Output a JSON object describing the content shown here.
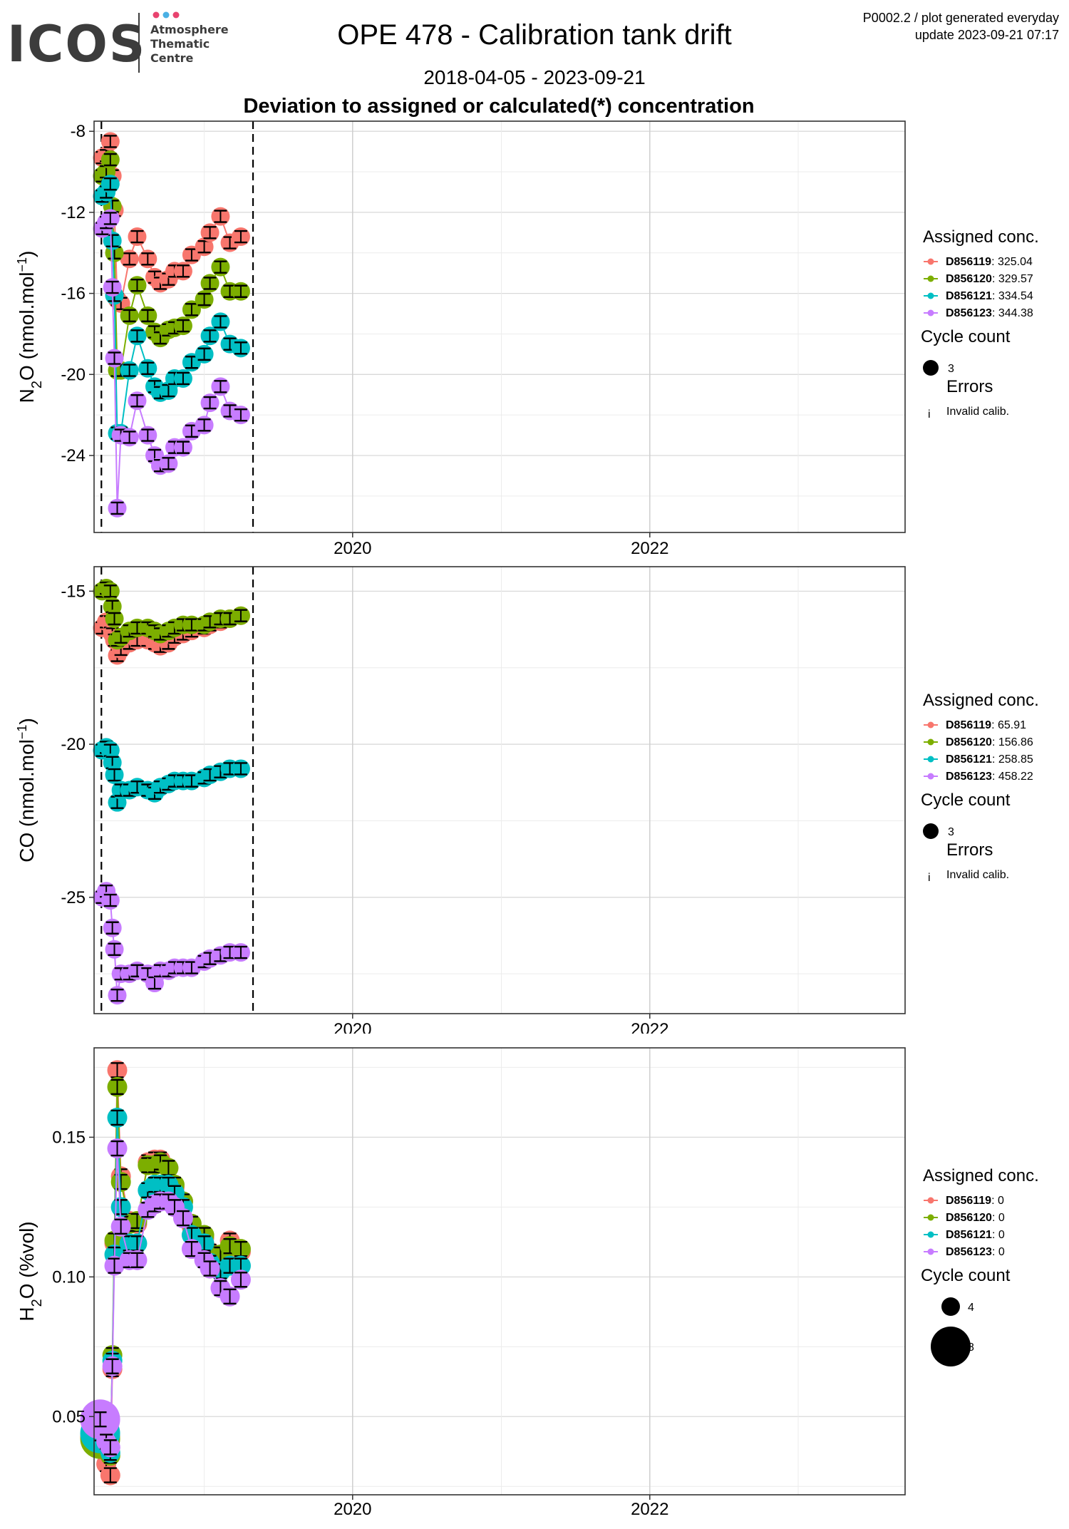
{
  "header": {
    "logo_main": "ICOS",
    "logo_sub_lines": [
      "Atmosphere",
      "Thematic",
      "Centre"
    ],
    "logo_dot_colors": [
      "#e8436f",
      "#4ab0e4",
      "#e8436f"
    ],
    "title": "OPE 478 - Calibration tank drift",
    "subtitle": "2018-04-05 - 2023-09-21",
    "headline": "Deviation to assigned or calculated(*) concentration",
    "info_line1": "P0002.2 / plot generated everyday",
    "info_line2": "update  2023-09-21 07:17"
  },
  "legend_labels": {
    "assigned": "Assigned conc.",
    "cycle": "Cycle count",
    "errors": "Errors",
    "invalid": "Invalid calib.",
    "error_glyph": "i"
  },
  "series_colors": {
    "D856119": "#f8766d",
    "D856120": "#7cae00",
    "D856121": "#00bfc4",
    "D856123": "#c77cff"
  },
  "chart_data": [
    {
      "type": "scatter",
      "id": "n2o",
      "ylabel": "N2O (nmol.mol-1)",
      "ylim": [
        -27.8,
        -7.5
      ],
      "yticks": [
        -24,
        -20,
        -16,
        -12,
        -8
      ],
      "xlim": [
        "2018-04-05",
        "2023-09-21"
      ],
      "xticks": [
        "2020",
        "2022"
      ],
      "grid": true,
      "legend_position": "right",
      "vlines_dashed": [
        "2018-04-23",
        "2019-05-01"
      ],
      "legend": {
        "assigned": [
          {
            "id": "D856119",
            "value": "325.04"
          },
          {
            "id": "D856120",
            "value": "329.57"
          },
          {
            "id": "D856121",
            "value": "334.54"
          },
          {
            "id": "D856123",
            "value": "344.38"
          }
        ],
        "cycle_sizes": [
          3
        ],
        "errors": true
      },
      "series": [
        {
          "name": "D856119",
          "x": [
            "2018-04-25",
            "2018-05-05",
            "2018-05-15",
            "2018-05-20",
            "2018-05-25",
            "2018-06-01",
            "2018-06-10",
            "2018-07-01",
            "2018-07-20",
            "2018-08-15",
            "2018-09-01",
            "2018-09-15",
            "2018-10-05",
            "2018-10-20",
            "2018-11-10",
            "2018-12-01",
            "2019-01-01",
            "2019-01-15",
            "2019-02-10",
            "2019-03-05",
            "2019-04-01"
          ],
          "y": [
            -9.3,
            -9.2,
            -8.5,
            -10.2,
            -11.9,
            -16.3,
            -16.5,
            -14.3,
            -13.2,
            -14.3,
            -15.2,
            -15.5,
            -15.3,
            -14.9,
            -14.9,
            -14.1,
            -13.7,
            -13.0,
            -12.2,
            -13.5,
            -13.2
          ]
        },
        {
          "name": "D856120",
          "x": [
            "2018-04-25",
            "2018-05-05",
            "2018-05-15",
            "2018-05-20",
            "2018-05-25",
            "2018-06-01",
            "2018-06-10",
            "2018-07-01",
            "2018-07-20",
            "2018-08-15",
            "2018-09-01",
            "2018-09-15",
            "2018-10-05",
            "2018-10-20",
            "2018-11-10",
            "2018-12-01",
            "2019-01-01",
            "2019-01-15",
            "2019-02-10",
            "2019-03-05",
            "2019-04-01"
          ],
          "y": [
            -10.2,
            -10.0,
            -9.4,
            -11.7,
            -14.0,
            -19.8,
            -19.8,
            -17.1,
            -15.6,
            -17.1,
            -17.9,
            -18.2,
            -17.8,
            -17.7,
            -17.6,
            -16.8,
            -16.3,
            -15.5,
            -14.7,
            -15.9,
            -15.9
          ]
        },
        {
          "name": "D856121",
          "x": [
            "2018-04-25",
            "2018-05-05",
            "2018-05-15",
            "2018-05-20",
            "2018-05-25",
            "2018-06-01",
            "2018-06-10",
            "2018-07-01",
            "2018-07-20",
            "2018-08-15",
            "2018-09-01",
            "2018-09-15",
            "2018-10-05",
            "2018-10-20",
            "2018-11-10",
            "2018-12-01",
            "2019-01-01",
            "2019-01-15",
            "2019-02-10",
            "2019-03-05",
            "2019-04-01"
          ],
          "y": [
            -11.2,
            -11.0,
            -10.6,
            -13.4,
            -16.1,
            -22.9,
            -22.9,
            -19.8,
            -18.1,
            -19.7,
            -20.6,
            -20.9,
            -20.8,
            -20.2,
            -20.2,
            -19.4,
            -19.0,
            -18.1,
            -17.4,
            -18.5,
            -18.7
          ]
        },
        {
          "name": "D856123",
          "x": [
            "2018-04-25",
            "2018-05-05",
            "2018-05-15",
            "2018-05-20",
            "2018-05-25",
            "2018-06-01",
            "2018-06-10",
            "2018-07-01",
            "2018-07-20",
            "2018-08-15",
            "2018-09-01",
            "2018-09-15",
            "2018-10-05",
            "2018-10-20",
            "2018-11-10",
            "2018-12-01",
            "2019-01-01",
            "2019-01-15",
            "2019-02-10",
            "2019-03-05",
            "2019-04-01"
          ],
          "y": [
            -12.8,
            -12.5,
            -12.3,
            -15.7,
            -19.2,
            -26.6,
            -23.0,
            -23.1,
            -21.3,
            -23.0,
            -24.0,
            -24.5,
            -24.4,
            -23.6,
            -23.6,
            -22.8,
            -22.5,
            -21.4,
            -20.6,
            -21.8,
            -22.0
          ]
        }
      ]
    },
    {
      "type": "scatter",
      "id": "co",
      "ylabel": "CO (nmol.mol-1)",
      "ylim": [
        -28.8,
        -14.2
      ],
      "yticks": [
        -25,
        -20,
        -15
      ],
      "xlim": [
        "2018-04-05",
        "2023-09-21"
      ],
      "xticks": [
        "2020",
        "2022"
      ],
      "grid": true,
      "legend_position": "right",
      "vlines_dashed": [
        "2018-04-23",
        "2019-05-01"
      ],
      "legend": {
        "assigned": [
          {
            "id": "D856119",
            "value": "65.91"
          },
          {
            "id": "D856120",
            "value": "156.86"
          },
          {
            "id": "D856121",
            "value": "258.85"
          },
          {
            "id": "D856123",
            "value": "458.22"
          }
        ],
        "cycle_sizes": [
          3
        ],
        "errors": true
      },
      "series": [
        {
          "name": "D856119",
          "x": [
            "2018-04-25",
            "2018-05-05",
            "2018-05-15",
            "2018-05-20",
            "2018-05-25",
            "2018-06-01",
            "2018-06-10",
            "2018-07-01",
            "2018-07-20",
            "2018-08-15",
            "2018-09-01",
            "2018-09-15",
            "2018-10-05",
            "2018-10-20",
            "2018-11-10",
            "2018-12-01",
            "2019-01-01",
            "2019-01-15",
            "2019-02-10",
            "2019-03-05",
            "2019-04-01"
          ],
          "y": [
            -16.2,
            -16.0,
            -16.0,
            -16.4,
            -16.6,
            -17.1,
            -16.9,
            -16.7,
            -16.6,
            -16.6,
            -16.7,
            -16.8,
            -16.7,
            -16.5,
            -16.4,
            -16.3,
            -16.2,
            -16.1,
            -16.0,
            -15.9,
            -15.8
          ]
        },
        {
          "name": "D856120",
          "x": [
            "2018-04-25",
            "2018-05-05",
            "2018-05-15",
            "2018-05-20",
            "2018-05-25",
            "2018-06-01",
            "2018-06-10",
            "2018-07-01",
            "2018-07-20",
            "2018-08-15",
            "2018-09-01",
            "2018-09-15",
            "2018-10-05",
            "2018-10-20",
            "2018-11-10",
            "2018-12-01",
            "2019-01-01",
            "2019-01-15",
            "2019-02-10",
            "2019-03-05",
            "2019-04-01"
          ],
          "y": [
            -15.0,
            -14.9,
            -15.0,
            -15.5,
            -15.9,
            -16.6,
            -16.5,
            -16.3,
            -16.2,
            -16.2,
            -16.3,
            -16.4,
            -16.3,
            -16.2,
            -16.1,
            -16.1,
            -16.1,
            -16.0,
            -15.9,
            -15.9,
            -15.8
          ]
        },
        {
          "name": "D856121",
          "x": [
            "2018-04-25",
            "2018-05-05",
            "2018-05-15",
            "2018-05-20",
            "2018-05-25",
            "2018-06-01",
            "2018-06-10",
            "2018-07-01",
            "2018-07-20",
            "2018-08-15",
            "2018-09-01",
            "2018-09-15",
            "2018-10-05",
            "2018-10-20",
            "2018-11-10",
            "2018-12-01",
            "2019-01-01",
            "2019-01-15",
            "2019-02-10",
            "2019-03-05",
            "2019-04-01"
          ],
          "y": [
            -20.2,
            -20.1,
            -20.2,
            -20.6,
            -21.0,
            -21.9,
            -21.5,
            -21.5,
            -21.4,
            -21.5,
            -21.6,
            -21.4,
            -21.3,
            -21.2,
            -21.2,
            -21.2,
            -21.1,
            -21.0,
            -20.9,
            -20.8,
            -20.8
          ]
        },
        {
          "name": "D856123",
          "x": [
            "2018-04-25",
            "2018-05-05",
            "2018-05-15",
            "2018-05-20",
            "2018-05-25",
            "2018-06-01",
            "2018-06-10",
            "2018-07-01",
            "2018-07-20",
            "2018-08-15",
            "2018-09-01",
            "2018-09-15",
            "2018-10-05",
            "2018-10-20",
            "2018-11-10",
            "2018-12-01",
            "2019-01-01",
            "2019-01-15",
            "2019-02-10",
            "2019-03-05",
            "2019-04-01"
          ],
          "y": [
            -25.0,
            -24.8,
            -25.1,
            -26.0,
            -26.7,
            -28.2,
            -27.5,
            -27.5,
            -27.4,
            -27.5,
            -27.8,
            -27.4,
            -27.4,
            -27.3,
            -27.3,
            -27.3,
            -27.1,
            -27.0,
            -26.9,
            -26.8,
            -26.8
          ]
        }
      ]
    },
    {
      "type": "scatter",
      "id": "h2o",
      "ylabel": "H2O (%vol)",
      "ylim": [
        0.022,
        0.182
      ],
      "yticks": [
        0.05,
        0.1,
        0.15
      ],
      "ytick_labels": [
        "0.05",
        "0.10",
        "0.15"
      ],
      "xlim": [
        "2018-04-05",
        "2023-09-21"
      ],
      "xticks": [
        "2020",
        "2022"
      ],
      "grid": true,
      "legend_position": "right",
      "vlines_dashed": [],
      "legend": {
        "assigned": [
          {
            "id": "D856119",
            "value": "0"
          },
          {
            "id": "D856120",
            "value": "0"
          },
          {
            "id": "D856121",
            "value": "0"
          },
          {
            "id": "D856123",
            "value": "0"
          }
        ],
        "cycle_sizes": [
          4,
          8
        ],
        "errors": false
      },
      "series": [
        {
          "name": "D856119",
          "x": [
            "2018-04-20",
            "2018-05-05",
            "2018-05-15",
            "2018-05-20",
            "2018-05-25",
            "2018-06-01",
            "2018-06-10",
            "2018-07-01",
            "2018-07-20",
            "2018-08-15",
            "2018-09-01",
            "2018-09-15",
            "2018-10-05",
            "2018-10-20",
            "2018-11-10",
            "2018-12-01",
            "2019-01-01",
            "2019-01-15",
            "2019-02-10",
            "2019-03-05",
            "2019-04-01"
          ],
          "y": [
            0.043,
            0.033,
            0.029,
            0.067,
            0.112,
            0.174,
            0.136,
            0.12,
            0.119,
            0.141,
            0.142,
            0.142,
            0.139,
            0.132,
            0.127,
            0.118,
            0.114,
            0.109,
            0.107,
            0.113,
            0.109
          ]
        },
        {
          "name": "D856120",
          "x": [
            "2018-04-20",
            "2018-05-05",
            "2018-05-15",
            "2018-05-20",
            "2018-05-25",
            "2018-06-01",
            "2018-06-10",
            "2018-07-01",
            "2018-07-20",
            "2018-08-15",
            "2018-09-01",
            "2018-09-15",
            "2018-10-05",
            "2018-10-20",
            "2018-11-10",
            "2018-12-01",
            "2019-01-01",
            "2019-01-15",
            "2019-02-10",
            "2019-03-05",
            "2019-04-01"
          ],
          "y": [
            0.042,
            0.04,
            0.036,
            0.072,
            0.113,
            0.168,
            0.134,
            0.119,
            0.12,
            0.14,
            0.14,
            0.141,
            0.139,
            0.133,
            0.127,
            0.119,
            0.115,
            0.108,
            0.108,
            0.111,
            0.11
          ]
        },
        {
          "name": "D856121",
          "x": [
            "2018-04-20",
            "2018-05-05",
            "2018-05-15",
            "2018-05-20",
            "2018-05-25",
            "2018-06-01",
            "2018-06-10",
            "2018-07-01",
            "2018-07-20",
            "2018-08-15",
            "2018-09-01",
            "2018-09-15",
            "2018-10-05",
            "2018-10-20",
            "2018-11-10",
            "2018-12-01",
            "2019-01-01",
            "2019-01-15",
            "2019-02-10",
            "2019-03-05",
            "2019-04-01"
          ],
          "y": [
            0.044,
            0.042,
            0.037,
            0.07,
            0.108,
            0.157,
            0.125,
            0.112,
            0.112,
            0.131,
            0.133,
            0.133,
            0.133,
            0.13,
            0.125,
            0.115,
            0.112,
            0.105,
            0.102,
            0.104,
            0.104
          ]
        },
        {
          "name": "D856123",
          "x": [
            "2018-04-20",
            "2018-05-05",
            "2018-05-15",
            "2018-05-20",
            "2018-05-25",
            "2018-06-01",
            "2018-06-10",
            "2018-07-01",
            "2018-07-20",
            "2018-08-15",
            "2018-09-01",
            "2018-09-15",
            "2018-10-05",
            "2018-10-20",
            "2018-11-10",
            "2018-12-01",
            "2019-01-01",
            "2019-01-15",
            "2019-02-10",
            "2019-03-05",
            "2019-04-01"
          ],
          "y": [
            0.049,
            0.041,
            0.039,
            0.068,
            0.104,
            0.146,
            0.118,
            0.106,
            0.106,
            0.124,
            0.126,
            0.127,
            0.127,
            0.125,
            0.121,
            0.11,
            0.106,
            0.103,
            0.096,
            0.093,
            0.099
          ]
        }
      ]
    }
  ]
}
